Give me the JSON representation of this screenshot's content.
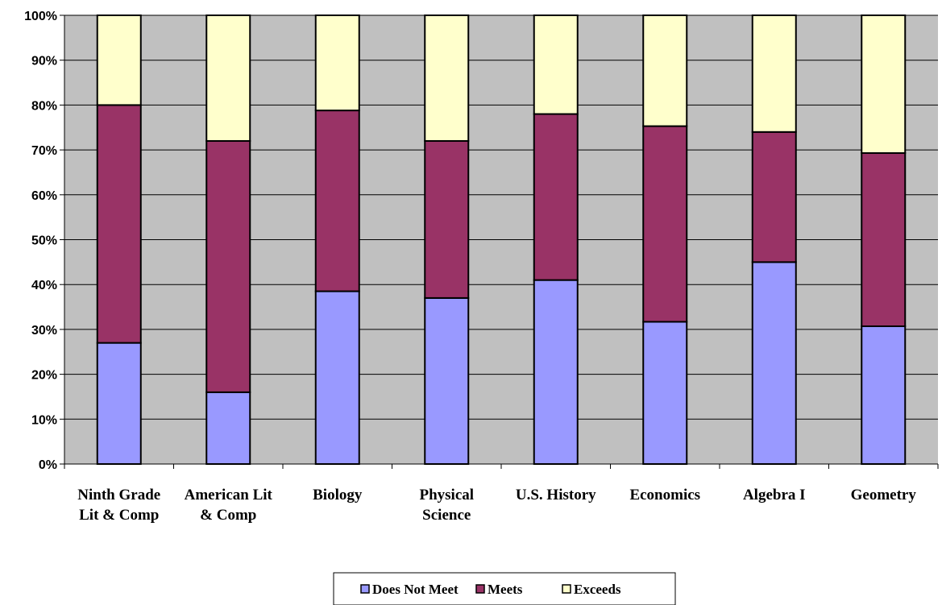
{
  "chart_data": {
    "type": "bar",
    "stacked": true,
    "percent": true,
    "categories": [
      [
        "Ninth Grade",
        "Lit & Comp"
      ],
      [
        "American Lit",
        "& Comp"
      ],
      [
        "Biology"
      ],
      [
        "Physical",
        "Science"
      ],
      [
        "U.S. History"
      ],
      [
        "Economics"
      ],
      [
        "Algebra I"
      ],
      [
        "Geometry"
      ]
    ],
    "series": [
      {
        "name": "Does Not Meet",
        "color": "#9999ff",
        "values": [
          27,
          16,
          38.5,
          37,
          41,
          31.7,
          45,
          30.7
        ]
      },
      {
        "name": "Meets",
        "color": "#993366",
        "values": [
          53,
          56,
          40.3,
          35,
          37,
          43.6,
          29,
          38.6
        ]
      },
      {
        "name": "Exceeds",
        "color": "#ffffcc",
        "values": [
          20,
          28,
          21.2,
          28,
          22,
          24.7,
          26,
          30.7
        ]
      }
    ],
    "yticks": [
      "0%",
      "10%",
      "20%",
      "30%",
      "40%",
      "50%",
      "60%",
      "70%",
      "80%",
      "90%",
      "100%"
    ],
    "ylim": [
      0,
      100
    ],
    "grid": true,
    "plot_background": "#c0c0c0",
    "legend_position": "bottom"
  }
}
